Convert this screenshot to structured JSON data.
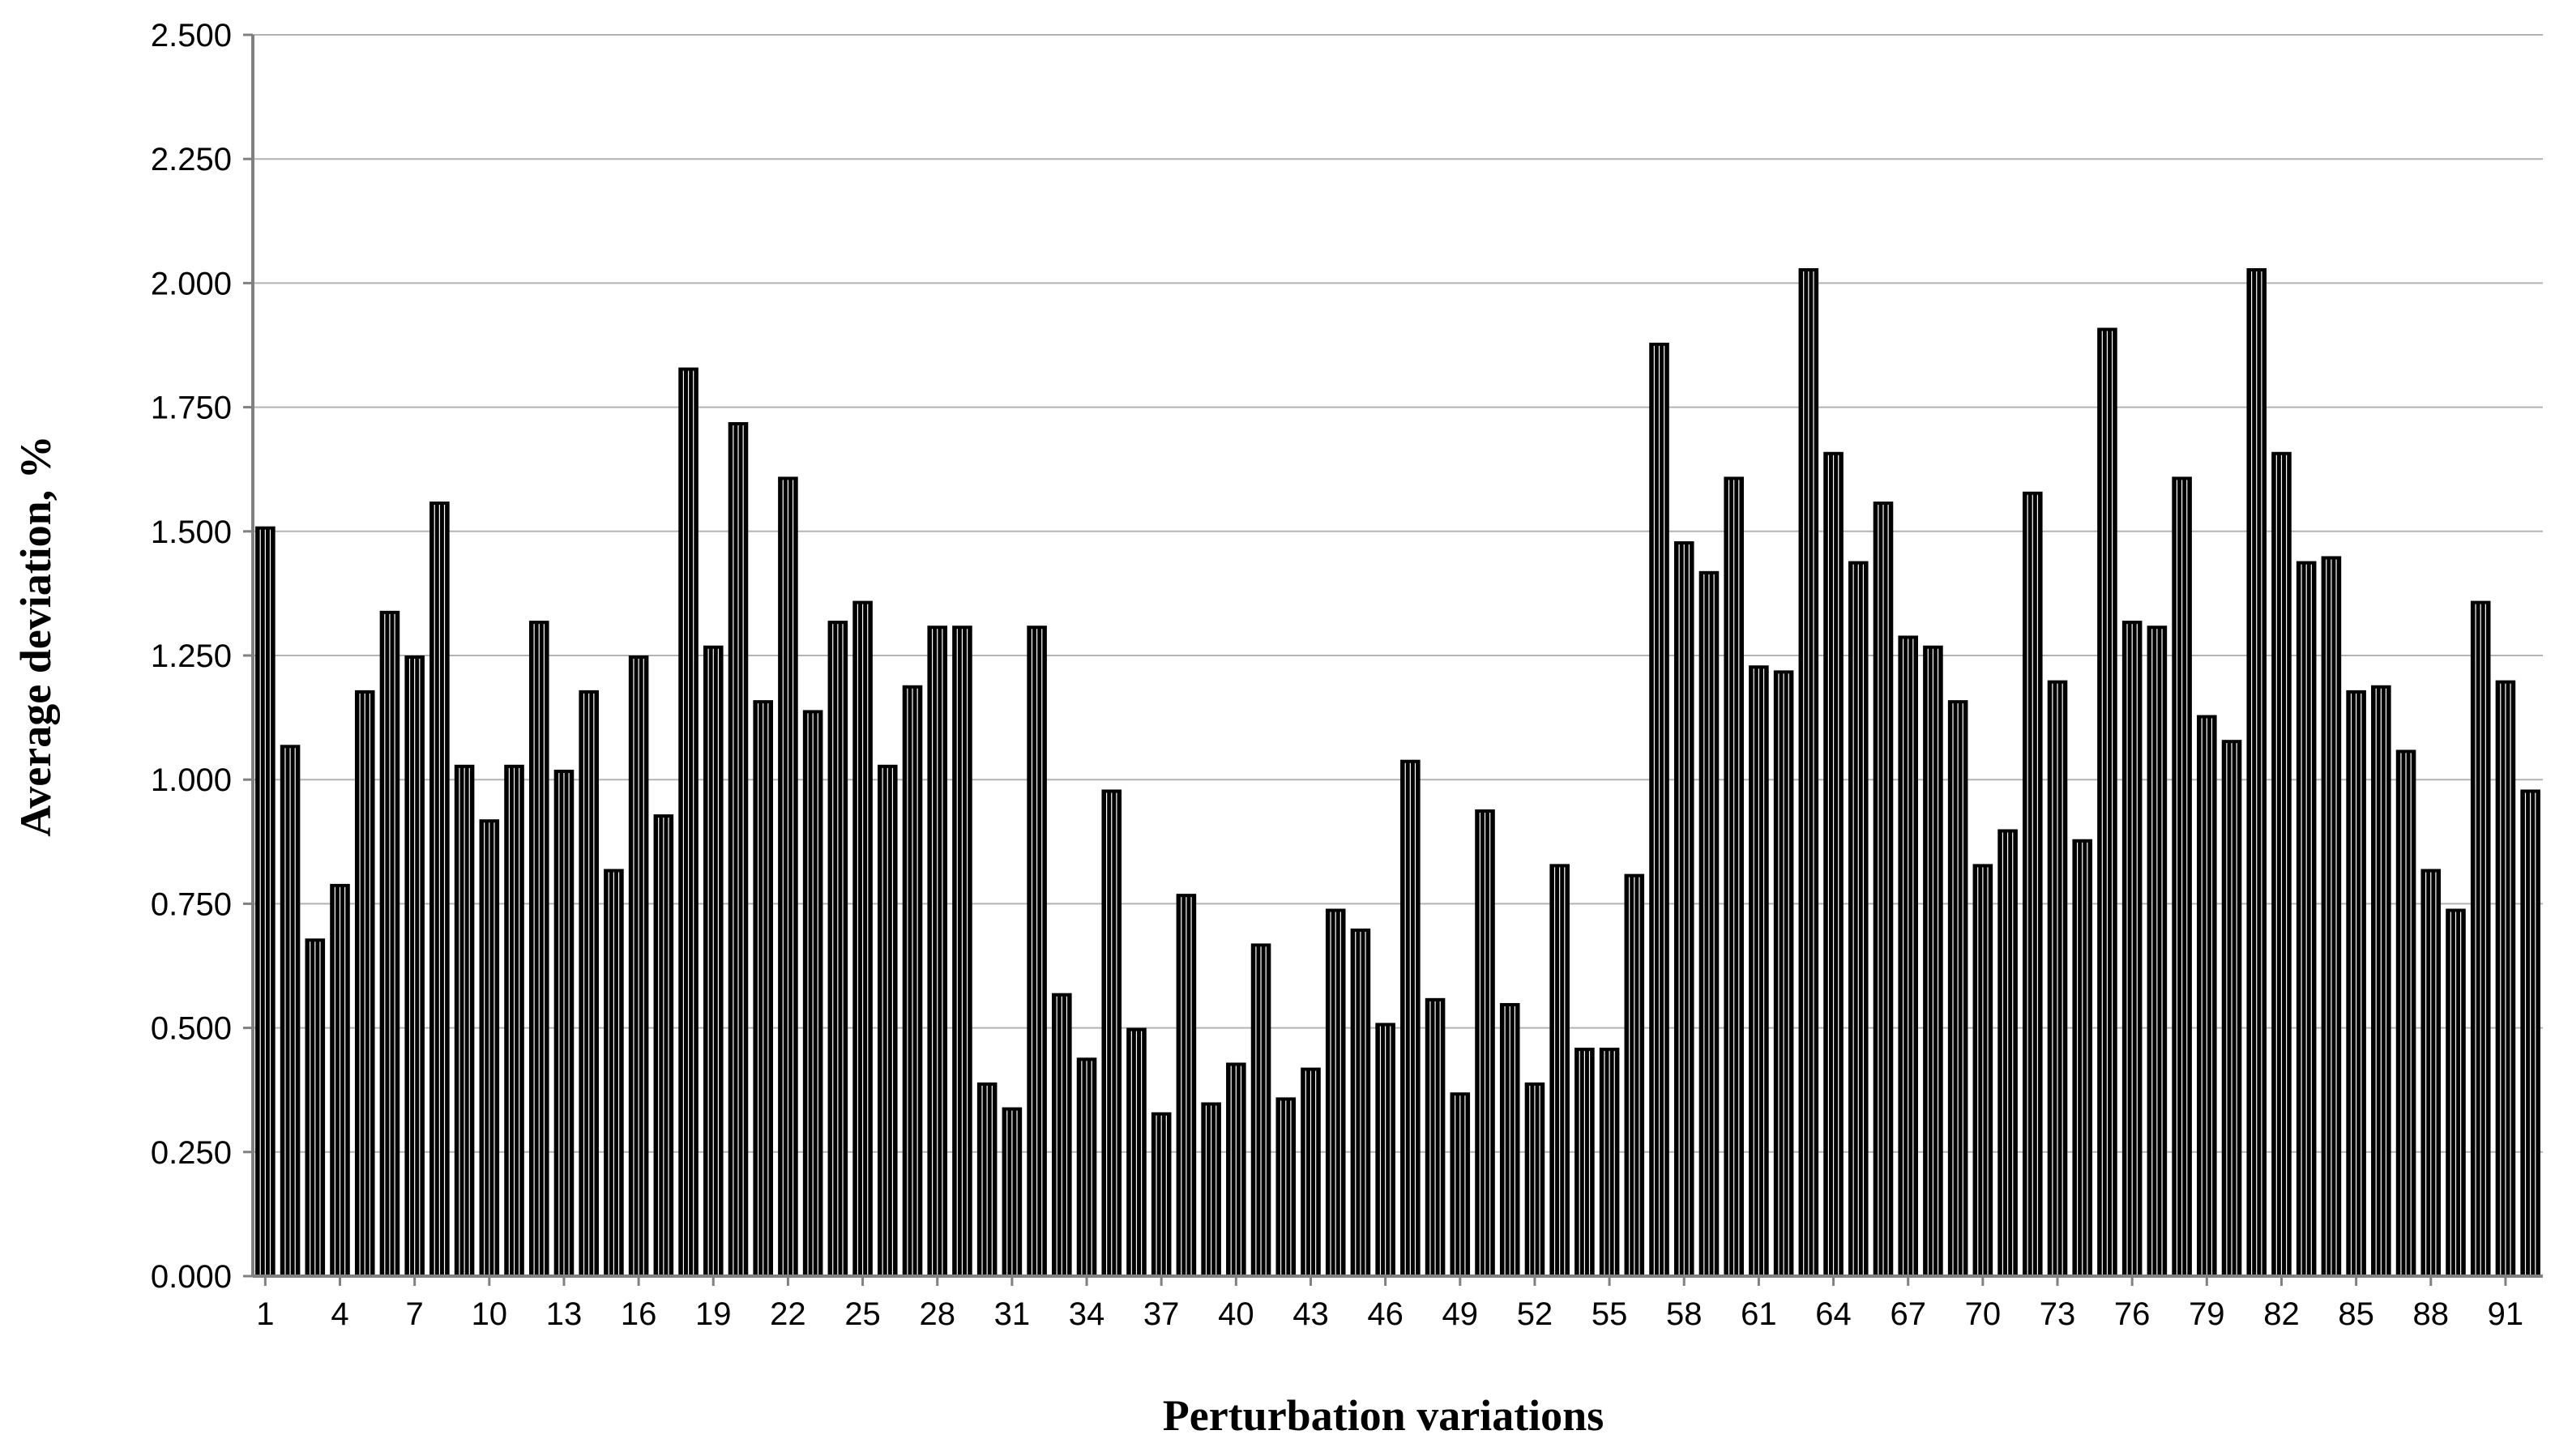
{
  "chart_data": {
    "type": "bar",
    "title": "",
    "xlabel": "Perturbation variations",
    "ylabel": "Average deviation, %",
    "ylim": [
      0,
      2.5
    ],
    "yticks": [
      "0.000",
      "0.250",
      "0.500",
      "0.750",
      "1.000",
      "1.250",
      "1.500",
      "1.750",
      "2.000",
      "2.250",
      "2.500"
    ],
    "grid": true,
    "legend": "none",
    "x_tick_labels": [
      "1",
      "4",
      "7",
      "10",
      "13",
      "16",
      "19",
      "22",
      "25",
      "28",
      "31",
      "34",
      "37",
      "40",
      "43",
      "46",
      "49",
      "52",
      "55",
      "58",
      "61",
      "64",
      "67",
      "70",
      "73",
      "76",
      "79",
      "82",
      "85",
      "88",
      "91"
    ],
    "categories": [
      "1",
      "2",
      "3",
      "4",
      "5",
      "6",
      "7",
      "8",
      "9",
      "10",
      "11",
      "12",
      "13",
      "14",
      "15",
      "16",
      "17",
      "18",
      "19",
      "20",
      "21",
      "22",
      "23",
      "24",
      "25",
      "26",
      "27",
      "28",
      "29",
      "30",
      "31",
      "32",
      "33",
      "34",
      "35",
      "36",
      "37",
      "38",
      "39",
      "40",
      "41",
      "42",
      "43",
      "44",
      "45",
      "46",
      "47",
      "48",
      "49",
      "50",
      "51",
      "52",
      "53",
      "54",
      "55",
      "56",
      "57",
      "58",
      "59",
      "60",
      "61",
      "62",
      "63",
      "64",
      "65",
      "66",
      "67",
      "68",
      "69",
      "70",
      "71",
      "72",
      "73",
      "74",
      "75",
      "76",
      "77",
      "78",
      "79",
      "80",
      "81",
      "82",
      "83",
      "84",
      "85",
      "86",
      "87",
      "88",
      "89",
      "90",
      "91",
      "92"
    ],
    "values": [
      1.51,
      1.07,
      0.68,
      0.79,
      1.18,
      1.34,
      1.25,
      1.56,
      1.03,
      0.92,
      1.03,
      1.32,
      1.02,
      1.18,
      0.82,
      1.25,
      0.93,
      1.83,
      1.27,
      1.72,
      1.16,
      1.61,
      1.14,
      1.32,
      1.36,
      1.03,
      1.19,
      1.31,
      1.31,
      0.39,
      0.34,
      1.31,
      0.57,
      0.44,
      0.98,
      0.5,
      0.33,
      0.77,
      0.35,
      0.43,
      0.67,
      0.36,
      0.42,
      0.74,
      0.7,
      0.51,
      1.04,
      0.56,
      0.37,
      0.94,
      0.55,
      0.39,
      0.83,
      0.46,
      0.46,
      0.81,
      1.88,
      1.48,
      1.42,
      1.61,
      1.23,
      1.22,
      2.03,
      1.66,
      1.44,
      1.56,
      1.29,
      1.27,
      1.16,
      0.83,
      0.9,
      1.58,
      1.2,
      0.88,
      1.91,
      1.32,
      1.31,
      1.61,
      1.13,
      1.08,
      2.03,
      1.66,
      1.44,
      1.45,
      1.18,
      1.19,
      1.06,
      0.82,
      0.74,
      1.36,
      1.2,
      0.98
    ]
  },
  "colors": {
    "bar": "#000000",
    "grid": "#b3b3b3",
    "axis": "#808080"
  }
}
